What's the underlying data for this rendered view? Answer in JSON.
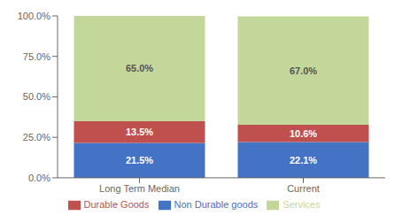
{
  "chart_data": {
    "type": "bar",
    "stacked": true,
    "categories": [
      "Long Term Median",
      "Current"
    ],
    "series": [
      {
        "name": "Non Durable goods",
        "color": "#4472C4",
        "values": [
          21.5,
          22.1
        ],
        "value_labels": [
          "21.5%",
          "22.1%"
        ]
      },
      {
        "name": "Durable Goods",
        "color": "#C0504D",
        "values": [
          13.5,
          10.6
        ],
        "value_labels": [
          "13.5%",
          "10.6%"
        ]
      },
      {
        "name": "Services",
        "color": "#C4D79B",
        "values": [
          65.0,
          67.0
        ],
        "value_labels": [
          "65.0%",
          "67.0%"
        ]
      }
    ],
    "ylim": [
      0,
      100
    ],
    "yticks": [
      {
        "value": 0,
        "label": "0.0%"
      },
      {
        "value": 25,
        "label": "25.0%"
      },
      {
        "value": 50,
        "label": "50.0%"
      },
      {
        "value": 75,
        "label": "75.0%"
      },
      {
        "value": 100,
        "label": "100.0%"
      }
    ],
    "grid": false,
    "legend": "bottom",
    "data_labels": true
  }
}
